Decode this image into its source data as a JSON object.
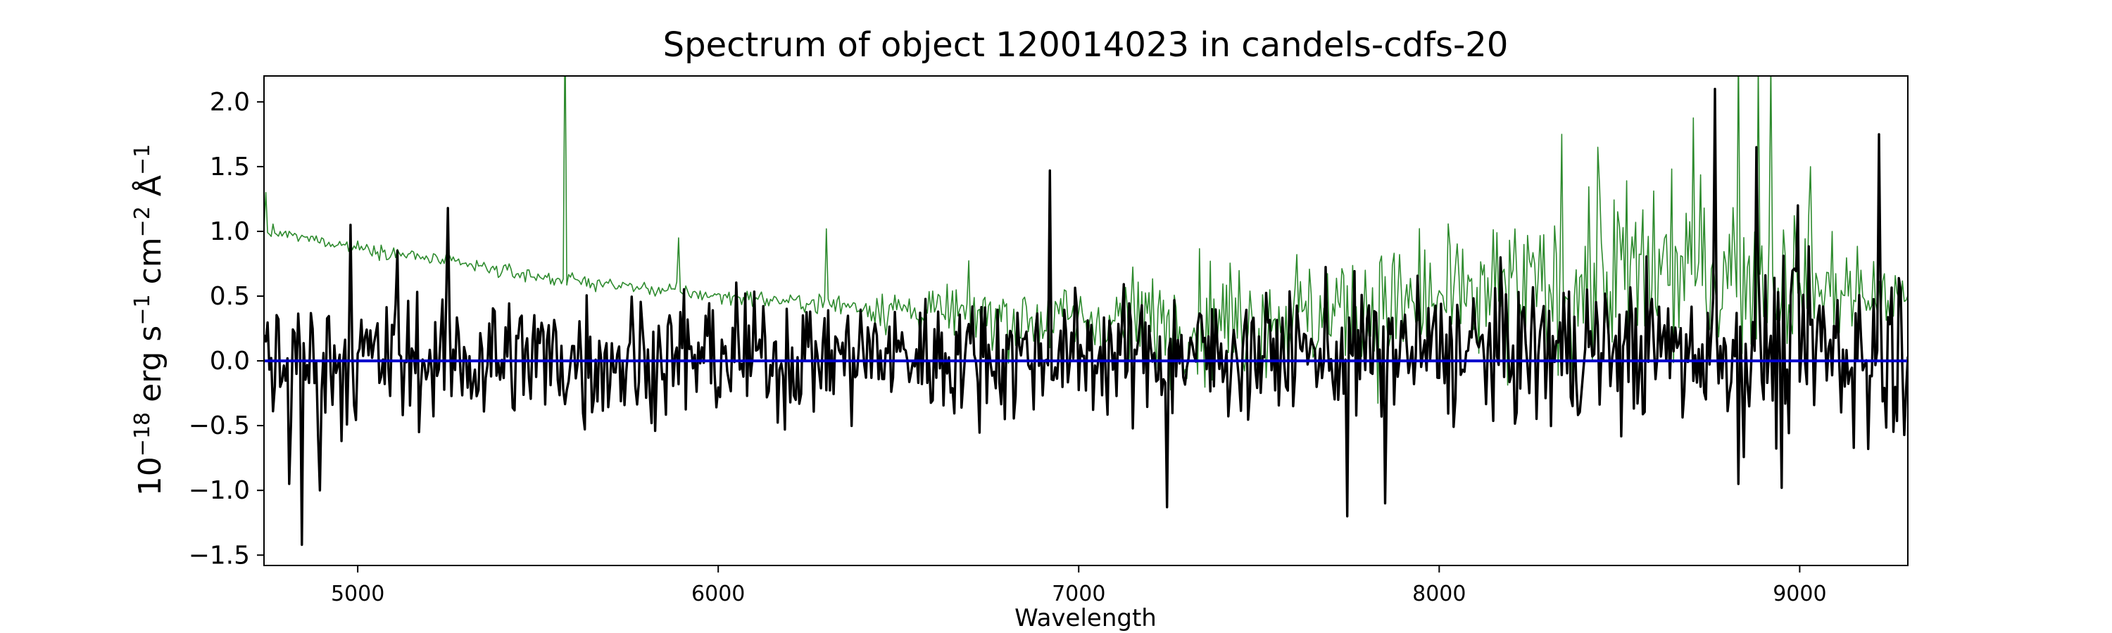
{
  "chart_data": {
    "type": "line",
    "title": "Spectrum of object 120014023 in candels-cdfs-20",
    "xlabel": "Wavelength",
    "ylabel": {
      "base": "10",
      "exp": "−18",
      "part1": " erg s",
      "exp1": "−1",
      "part2": " cm",
      "exp2": "−2",
      "part3": " Å",
      "exp3": "−1"
    },
    "xlim": [
      4740,
      9300
    ],
    "ylim": [
      -1.58,
      2.2
    ],
    "xticks": [
      5000,
      6000,
      7000,
      8000,
      9000
    ],
    "xtick_labels": [
      "5000",
      "6000",
      "7000",
      "8000",
      "9000"
    ],
    "yticks": [
      -1.5,
      -1.0,
      -0.5,
      0.0,
      0.5,
      1.0,
      1.5,
      2.0
    ],
    "ytick_labels": [
      "−1.5",
      "−1.0",
      "−0.5",
      "0.0",
      "0.5",
      "1.0",
      "1.5",
      "2.0"
    ],
    "grid": false,
    "series": [
      {
        "role": "flux",
        "color": "#000000",
        "x_step": 5,
        "profile": [
          [
            4740,
            0.0
          ],
          [
            9300,
            0.1
          ]
        ],
        "noise_amplitude": [
          [
            4740,
            0.45
          ],
          [
            7200,
            0.38
          ],
          [
            8700,
            0.5
          ],
          [
            9300,
            0.6
          ]
        ],
        "features": [
          {
            "x": 4845,
            "y": -1.42
          },
          {
            "x": 4810,
            "y": -0.95
          },
          {
            "x": 4895,
            "y": -1.0
          },
          {
            "x": 4980,
            "y": 1.05
          },
          {
            "x": 5250,
            "y": 1.18
          },
          {
            "x": 5110,
            "y": 0.85
          },
          {
            "x": 6920,
            "y": 1.47
          },
          {
            "x": 7245,
            "y": -1.13
          },
          {
            "x": 7745,
            "y": -1.2
          },
          {
            "x": 7850,
            "y": -1.1
          },
          {
            "x": 8765,
            "y": 2.1
          },
          {
            "x": 8830,
            "y": -0.95
          },
          {
            "x": 8950,
            "y": -0.98
          },
          {
            "x": 9220,
            "y": 1.75
          },
          {
            "x": 9190,
            "y": -0.68
          },
          {
            "x": 8880,
            "y": 1.65
          },
          {
            "x": 8995,
            "y": 1.2
          }
        ]
      },
      {
        "role": "error",
        "color": "#2e8b2e",
        "x_step": 5,
        "profile": [
          [
            4740,
            1.0
          ],
          [
            5500,
            0.65
          ],
          [
            6000,
            0.5
          ],
          [
            6500,
            0.4
          ],
          [
            7000,
            0.3
          ],
          [
            7500,
            0.33
          ],
          [
            8000,
            0.45
          ],
          [
            8300,
            0.55
          ],
          [
            8700,
            0.75
          ],
          [
            9000,
            0.6
          ],
          [
            9300,
            0.45
          ]
        ],
        "noise_amplitude": [
          [
            4740,
            0.04
          ],
          [
            6200,
            0.05
          ],
          [
            7200,
            0.35
          ],
          [
            8250,
            0.5
          ],
          [
            8700,
            0.7
          ],
          [
            9300,
            0.15
          ]
        ],
        "features": [
          {
            "x": 4745,
            "y": 1.3
          },
          {
            "x": 5577,
            "y": 2.6
          },
          {
            "x": 5890,
            "y": 0.95
          },
          {
            "x": 6300,
            "y": 1.02
          },
          {
            "x": 8340,
            "y": 1.75
          },
          {
            "x": 8440,
            "y": 1.65
          },
          {
            "x": 8830,
            "y": 2.4
          },
          {
            "x": 8885,
            "y": 2.3
          },
          {
            "x": 8920,
            "y": 2.3
          },
          {
            "x": 9030,
            "y": 1.5
          }
        ]
      },
      {
        "role": "zero",
        "color": "#0000cc",
        "x": [
          4740,
          9300
        ],
        "y": [
          0,
          0
        ]
      }
    ]
  }
}
